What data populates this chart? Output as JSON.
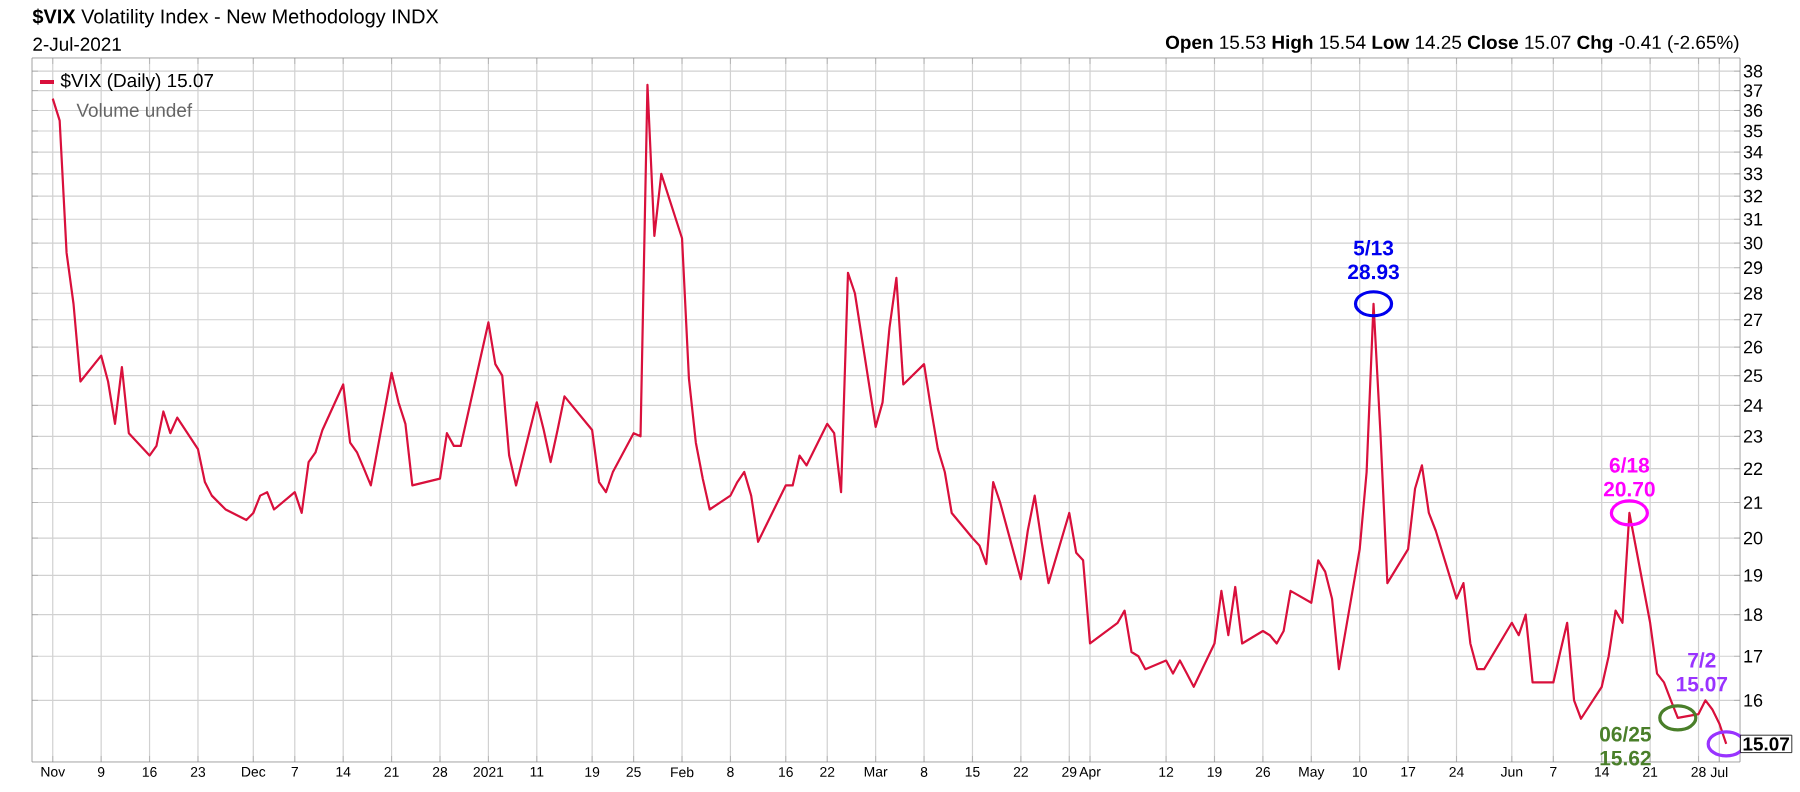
{
  "chart_data": {
    "type": "line",
    "title": "**$VIX** Volatility Index - New Methodology INDX",
    "subtitle": "2-Jul-2021",
    "x": [
      "2020-11-02",
      "2020-11-03",
      "2020-11-04",
      "2020-11-05",
      "2020-11-06",
      "2020-11-09",
      "2020-11-10",
      "2020-11-11",
      "2020-11-12",
      "2020-11-13",
      "2020-11-16",
      "2020-11-17",
      "2020-11-18",
      "2020-11-19",
      "2020-11-20",
      "2020-11-23",
      "2020-11-24",
      "2020-11-25",
      "2020-11-27",
      "2020-11-30",
      "2020-12-01",
      "2020-12-02",
      "2020-12-03",
      "2020-12-04",
      "2020-12-07",
      "2020-12-08",
      "2020-12-09",
      "2020-12-10",
      "2020-12-11",
      "2020-12-14",
      "2020-12-15",
      "2020-12-16",
      "2020-12-17",
      "2020-12-18",
      "2020-12-21",
      "2020-12-22",
      "2020-12-23",
      "2020-12-24",
      "2020-12-28",
      "2020-12-29",
      "2020-12-30",
      "2020-12-31",
      "2021-01-04",
      "2021-01-05",
      "2021-01-06",
      "2021-01-07",
      "2021-01-08",
      "2021-01-11",
      "2021-01-12",
      "2021-01-13",
      "2021-01-14",
      "2021-01-15",
      "2021-01-19",
      "2021-01-20",
      "2021-01-21",
      "2021-01-22",
      "2021-01-25",
      "2021-01-26",
      "2021-01-27",
      "2021-01-28",
      "2021-01-29",
      "2021-02-01",
      "2021-02-02",
      "2021-02-03",
      "2021-02-04",
      "2021-02-05",
      "2021-02-08",
      "2021-02-09",
      "2021-02-10",
      "2021-02-11",
      "2021-02-12",
      "2021-02-16",
      "2021-02-17",
      "2021-02-18",
      "2021-02-19",
      "2021-02-22",
      "2021-02-23",
      "2021-02-24",
      "2021-02-25",
      "2021-02-26",
      "2021-03-01",
      "2021-03-02",
      "2021-03-03",
      "2021-03-04",
      "2021-03-05",
      "2021-03-08",
      "2021-03-09",
      "2021-03-10",
      "2021-03-11",
      "2021-03-12",
      "2021-03-15",
      "2021-03-16",
      "2021-03-17",
      "2021-03-18",
      "2021-03-19",
      "2021-03-22",
      "2021-03-23",
      "2021-03-24",
      "2021-03-25",
      "2021-03-26",
      "2021-03-29",
      "2021-03-30",
      "2021-03-31",
      "2021-04-01",
      "2021-04-05",
      "2021-04-06",
      "2021-04-07",
      "2021-04-08",
      "2021-04-09",
      "2021-04-12",
      "2021-04-13",
      "2021-04-14",
      "2021-04-15",
      "2021-04-16",
      "2021-04-19",
      "2021-04-20",
      "2021-04-21",
      "2021-04-22",
      "2021-04-23",
      "2021-04-26",
      "2021-04-27",
      "2021-04-28",
      "2021-04-29",
      "2021-04-30",
      "2021-05-03",
      "2021-05-04",
      "2021-05-05",
      "2021-05-06",
      "2021-05-07",
      "2021-05-10",
      "2021-05-11",
      "2021-05-12",
      "2021-05-13",
      "2021-05-14",
      "2021-05-17",
      "2021-05-18",
      "2021-05-19",
      "2021-05-20",
      "2021-05-21",
      "2021-05-24",
      "2021-05-25",
      "2021-05-26",
      "2021-05-27",
      "2021-05-28",
      "2021-06-01",
      "2021-06-02",
      "2021-06-03",
      "2021-06-04",
      "2021-06-07",
      "2021-06-08",
      "2021-06-09",
      "2021-06-10",
      "2021-06-11",
      "2021-06-14",
      "2021-06-15",
      "2021-06-16",
      "2021-06-17",
      "2021-06-18",
      "2021-06-21",
      "2021-06-22",
      "2021-06-23",
      "2021-06-24",
      "2021-06-25",
      "2021-06-28",
      "2021-06-29",
      "2021-06-30",
      "2021-07-01",
      "2021-07-02"
    ],
    "series": [
      {
        "name": "$VIX (Daily) 15.07",
        "color": "#d9103c",
        "values": [
          36.6,
          35.5,
          29.6,
          27.6,
          24.8,
          25.7,
          24.8,
          23.4,
          25.3,
          23.1,
          22.4,
          22.7,
          23.8,
          23.1,
          23.6,
          22.6,
          21.6,
          21.2,
          20.8,
          20.5,
          20.7,
          21.2,
          21.3,
          20.8,
          21.3,
          20.7,
          22.2,
          22.5,
          23.2,
          24.7,
          22.8,
          22.5,
          22.0,
          21.5,
          25.1,
          24.1,
          23.4,
          21.5,
          21.7,
          23.1,
          22.7,
          22.7,
          26.9,
          25.4,
          25.0,
          22.4,
          21.5,
          24.1,
          23.2,
          22.2,
          23.2,
          24.3,
          23.2,
          21.6,
          21.3,
          21.9,
          23.1,
          23.0,
          37.3,
          30.3,
          33.0,
          30.2,
          24.9,
          22.8,
          21.7,
          20.8,
          21.2,
          21.6,
          21.9,
          21.2,
          19.9,
          21.5,
          21.5,
          22.4,
          22.1,
          23.4,
          23.1,
          21.3,
          28.8,
          28.0,
          23.3,
          24.1,
          26.7,
          28.6,
          24.7,
          25.4,
          23.9,
          22.6,
          21.9,
          20.7,
          20.0,
          19.8,
          19.3,
          21.6,
          21.0,
          18.9,
          20.2,
          21.2,
          19.9,
          18.8,
          20.7,
          19.6,
          19.4,
          17.3,
          17.8,
          18.1,
          17.1,
          17.0,
          16.7,
          16.9,
          16.6,
          16.9,
          16.6,
          16.3,
          17.3,
          18.6,
          17.5,
          18.7,
          17.3,
          17.6,
          17.5,
          17.3,
          17.6,
          18.6,
          18.3,
          19.4,
          19.1,
          18.4,
          16.7,
          19.7,
          21.9,
          27.6,
          23.1,
          18.8,
          19.7,
          21.4,
          22.1,
          20.7,
          20.2,
          18.4,
          18.8,
          17.3,
          16.7,
          16.7,
          17.8,
          17.5,
          18.0,
          16.4,
          16.4,
          17.1,
          17.8,
          16.0,
          15.6,
          16.3,
          17.0,
          18.1,
          17.8,
          20.7,
          17.8,
          16.6,
          16.4,
          16.0,
          15.62,
          15.7,
          16.0,
          15.8,
          15.5,
          15.07
        ]
      }
    ],
    "xlim": [
      "2020-10-30",
      "2021-07-04"
    ],
    "xticks": [
      {
        "value": "2020-11-02",
        "label": "Nov"
      },
      {
        "value": "2020-11-09",
        "label": "9"
      },
      {
        "value": "2020-11-16",
        "label": "16"
      },
      {
        "value": "2020-11-23",
        "label": "23"
      },
      {
        "value": "2020-12-01",
        "label": "Dec"
      },
      {
        "value": "2020-12-07",
        "label": "7"
      },
      {
        "value": "2020-12-14",
        "label": "14"
      },
      {
        "value": "2020-12-21",
        "label": "21"
      },
      {
        "value": "2020-12-28",
        "label": "28"
      },
      {
        "value": "2021-01-04",
        "label": "2021"
      },
      {
        "value": "2021-01-11",
        "label": "11"
      },
      {
        "value": "2021-01-19",
        "label": "19"
      },
      {
        "value": "2021-01-25",
        "label": "25"
      },
      {
        "value": "2021-02-01",
        "label": "Feb"
      },
      {
        "value": "2021-02-08",
        "label": "8"
      },
      {
        "value": "2021-02-16",
        "label": "16"
      },
      {
        "value": "2021-02-22",
        "label": "22"
      },
      {
        "value": "2021-03-01",
        "label": "Mar"
      },
      {
        "value": "2021-03-08",
        "label": "8"
      },
      {
        "value": "2021-03-15",
        "label": "15"
      },
      {
        "value": "2021-03-22",
        "label": "22"
      },
      {
        "value": "2021-03-29",
        "label": "29"
      },
      {
        "value": "2021-04-01",
        "label": "Apr"
      },
      {
        "value": "2021-04-12",
        "label": "12"
      },
      {
        "value": "2021-04-19",
        "label": "19"
      },
      {
        "value": "2021-04-26",
        "label": "26"
      },
      {
        "value": "2021-05-03",
        "label": "May"
      },
      {
        "value": "2021-05-10",
        "label": "10"
      },
      {
        "value": "2021-05-17",
        "label": "17"
      },
      {
        "value": "2021-05-24",
        "label": "24"
      },
      {
        "value": "2021-06-01",
        "label": "Jun"
      },
      {
        "value": "2021-06-07",
        "label": "7"
      },
      {
        "value": "2021-06-14",
        "label": "14"
      },
      {
        "value": "2021-06-21",
        "label": "21"
      },
      {
        "value": "2021-06-28",
        "label": "28"
      },
      {
        "value": "2021-07-01",
        "label": "Jul"
      }
    ],
    "ylim": [
      14.7,
      38.7
    ],
    "yticks": [
      16,
      17,
      18,
      19,
      20,
      21,
      22,
      23,
      24,
      25,
      26,
      27,
      28,
      29,
      30,
      31,
      32,
      33,
      34,
      35,
      36,
      37,
      38
    ],
    "log": "y",
    "grid": true,
    "legend": "top left",
    "annotations": [
      "**Open** 15.53 **High** 15.54 **Low** 14.25 **Close** 15.07 **Chg** -0.41 (-2.65%)",
      "Volume undef",
      {
        "text": "5/13 28.93",
        "x": "2021-05-12",
        "y": 27.6
      },
      {
        "text": "6/18 20.70",
        "x": "2021-06-18",
        "y": 20.7
      },
      {
        "text": "06/25 15.62",
        "x": "2021-06-25",
        "y": 15.62
      },
      {
        "text": "7/2 15.07",
        "x": "2021-07-02",
        "y": 15.07
      },
      "15.07"
    ]
  }
}
